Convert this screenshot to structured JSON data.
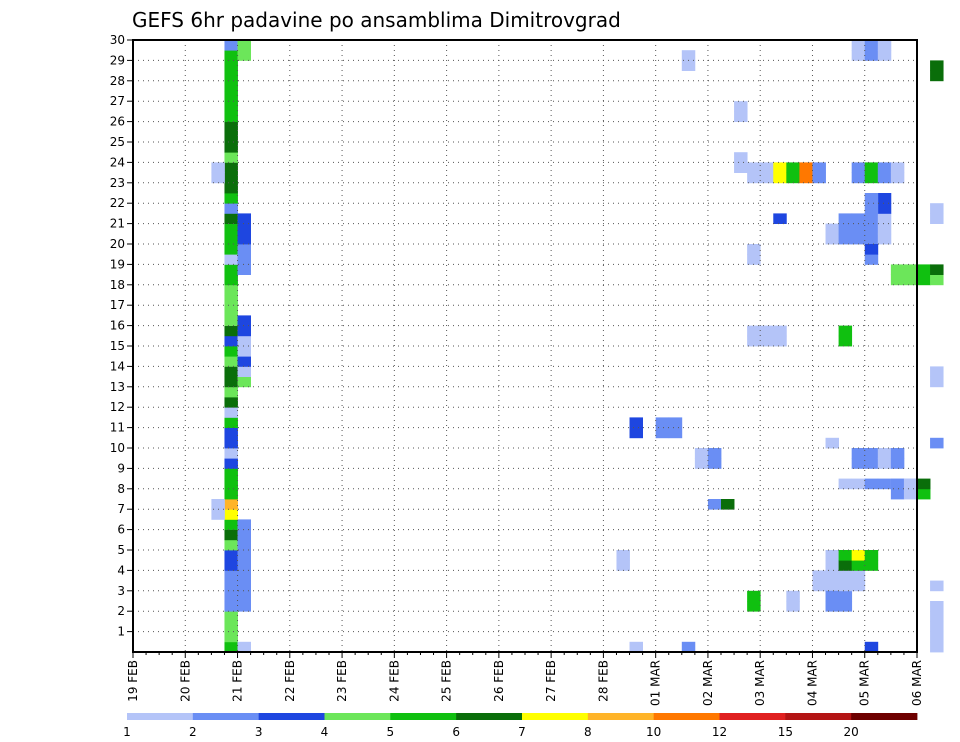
{
  "chart_data": {
    "type": "heatmap",
    "title": "GEFS 6hr padavine po ansamblima Dimitrovgrad",
    "xlabel": "",
    "ylabel": "",
    "x_ticks": [
      "19 FEB",
      "20 FEB",
      "21 FEB",
      "22 FEB",
      "23 FEB",
      "24 FEB",
      "25 FEB",
      "26 FEB",
      "27 FEB",
      "28 FEB",
      "01 MAR",
      "02 MAR",
      "03 MAR",
      "04 MAR",
      "05 MAR",
      "06 MAR"
    ],
    "y_ticks": [
      "1",
      "2",
      "3",
      "4",
      "5",
      "6",
      "7",
      "8",
      "9",
      "10",
      "11",
      "12",
      "13",
      "14",
      "15",
      "16",
      "17",
      "18",
      "19",
      "20",
      "21",
      "22",
      "23",
      "24",
      "25",
      "26",
      "27",
      "28",
      "29",
      "30"
    ],
    "x_unit": "6-hour steps since 19 FEB 00Z",
    "ylim": [
      0,
      30
    ],
    "grid": true,
    "legend": {
      "placement": "bottom",
      "colors": [
        "#b4c4f8",
        "#6a8ef4",
        "#1e46e0",
        "#6ce65a",
        "#10c010",
        "#0a6e0a",
        "#ffff00",
        "#ffb428",
        "#ff7800",
        "#e02020",
        "#b41414",
        "#6e0000"
      ],
      "labels": [
        "1",
        "2",
        "3",
        "4",
        "5",
        "6",
        "7",
        "8",
        "10",
        "12",
        "15",
        "20"
      ]
    },
    "cells": [
      [
        7,
        0,
        5
      ],
      [
        7,
        1,
        4
      ],
      [
        7,
        2,
        4
      ],
      [
        7,
        3,
        4
      ],
      [
        7,
        4,
        2
      ],
      [
        7,
        5,
        2
      ],
      [
        7,
        6,
        2
      ],
      [
        7,
        7,
        2
      ],
      [
        7,
        8,
        3
      ],
      [
        7,
        9,
        3
      ],
      [
        7,
        10,
        4
      ],
      [
        7,
        11,
        6
      ],
      [
        7,
        12,
        5
      ],
      [
        7,
        13,
        7
      ],
      [
        7,
        14,
        8
      ],
      [
        7,
        15,
        5
      ],
      [
        7,
        16,
        5
      ],
      [
        7,
        17,
        5
      ],
      [
        7,
        18,
        3
      ],
      [
        7,
        19,
        1
      ],
      [
        7,
        20,
        3
      ],
      [
        7,
        21,
        3
      ],
      [
        7,
        22,
        5
      ],
      [
        7,
        23,
        1
      ],
      [
        7,
        24,
        6
      ],
      [
        7,
        25,
        4
      ],
      [
        7,
        26,
        6
      ],
      [
        7,
        27,
        6
      ],
      [
        7,
        28,
        4
      ],
      [
        7,
        29,
        5
      ],
      [
        7,
        30,
        3
      ],
      [
        7,
        31,
        6
      ],
      [
        7,
        32,
        4
      ],
      [
        7,
        33,
        4
      ],
      [
        7,
        34,
        4
      ],
      [
        7,
        35,
        4
      ],
      [
        7,
        36,
        5
      ],
      [
        7,
        37,
        5
      ],
      [
        7,
        38,
        1
      ],
      [
        7,
        39,
        5
      ],
      [
        7,
        40,
        5
      ],
      [
        7,
        41,
        5
      ],
      [
        7,
        42,
        6
      ],
      [
        7,
        43,
        2
      ],
      [
        7,
        44,
        5
      ],
      [
        7,
        45,
        6
      ],
      [
        7,
        46,
        6
      ],
      [
        7,
        47,
        6
      ],
      [
        7,
        48,
        4
      ],
      [
        7,
        49,
        6
      ],
      [
        7,
        50,
        6
      ],
      [
        7,
        51,
        6
      ],
      [
        7,
        52,
        5
      ],
      [
        7,
        53,
        5
      ],
      [
        7,
        54,
        5
      ],
      [
        7,
        55,
        5
      ],
      [
        7,
        56,
        5
      ],
      [
        7,
        57,
        5
      ],
      [
        7,
        58,
        5
      ],
      [
        7,
        59,
        2
      ],
      [
        8,
        0,
        1
      ],
      [
        8,
        4,
        2
      ],
      [
        8,
        5,
        2
      ],
      [
        8,
        6,
        2
      ],
      [
        8,
        7,
        2
      ],
      [
        8,
        8,
        2
      ],
      [
        8,
        9,
        2
      ],
      [
        8,
        10,
        2
      ],
      [
        8,
        11,
        2
      ],
      [
        8,
        12,
        2
      ],
      [
        8,
        26,
        4
      ],
      [
        8,
        27,
        1
      ],
      [
        8,
        28,
        3
      ],
      [
        8,
        29,
        1
      ],
      [
        8,
        30,
        1
      ],
      [
        8,
        31,
        3
      ],
      [
        8,
        32,
        3
      ],
      [
        8,
        37,
        2
      ],
      [
        8,
        38,
        2
      ],
      [
        8,
        39,
        2
      ],
      [
        8,
        40,
        3
      ],
      [
        8,
        41,
        3
      ],
      [
        8,
        42,
        3
      ],
      [
        8,
        58,
        4
      ],
      [
        8,
        59,
        4
      ],
      [
        6,
        13,
        1
      ],
      [
        6,
        14,
        1
      ],
      [
        6,
        46,
        1
      ],
      [
        6,
        47,
        1
      ],
      [
        37,
        8,
        1
      ],
      [
        37,
        9,
        1
      ],
      [
        38,
        0,
        1
      ],
      [
        38,
        21,
        3
      ],
      [
        38,
        22,
        3
      ],
      [
        40,
        21,
        2
      ],
      [
        40,
        22,
        2
      ],
      [
        41,
        21,
        2
      ],
      [
        41,
        22,
        2
      ],
      [
        42,
        0,
        2
      ],
      [
        42,
        57,
        1
      ],
      [
        42,
        58,
        1
      ],
      [
        43,
        18,
        1
      ],
      [
        43,
        19,
        1
      ],
      [
        44,
        18,
        2
      ],
      [
        44,
        19,
        2
      ],
      [
        44,
        14,
        2
      ],
      [
        45,
        14,
        6
      ],
      [
        46,
        52,
        1
      ],
      [
        46,
        53,
        1
      ],
      [
        46,
        47,
        1
      ],
      [
        46,
        48,
        1
      ],
      [
        47,
        30,
        1
      ],
      [
        47,
        31,
        1
      ],
      [
        48,
        30,
        1
      ],
      [
        48,
        31,
        1
      ],
      [
        49,
        30,
        1
      ],
      [
        49,
        31,
        1
      ],
      [
        47,
        38,
        1
      ],
      [
        47,
        39,
        1
      ],
      [
        47,
        4,
        5
      ],
      [
        47,
        5,
        5
      ],
      [
        47,
        46,
        1
      ],
      [
        47,
        47,
        1
      ],
      [
        48,
        46,
        1
      ],
      [
        48,
        47,
        1
      ],
      [
        49,
        46,
        7
      ],
      [
        49,
        47,
        7
      ],
      [
        50,
        46,
        5
      ],
      [
        50,
        47,
        5
      ],
      [
        51,
        46,
        9
      ],
      [
        51,
        47,
        9
      ],
      [
        52,
        46,
        2
      ],
      [
        52,
        47,
        2
      ],
      [
        49,
        42,
        3
      ],
      [
        50,
        4,
        1
      ],
      [
        50,
        5,
        1
      ],
      [
        52,
        6,
        1
      ],
      [
        52,
        7,
        1
      ],
      [
        53,
        6,
        1
      ],
      [
        53,
        7,
        1
      ],
      [
        53,
        4,
        2
      ],
      [
        53,
        5,
        2
      ],
      [
        54,
        4,
        2
      ],
      [
        54,
        5,
        2
      ],
      [
        54,
        6,
        1
      ],
      [
        54,
        7,
        1
      ],
      [
        55,
        6,
        1
      ],
      [
        55,
        7,
        1
      ],
      [
        53,
        8,
        1
      ],
      [
        53,
        9,
        1
      ],
      [
        54,
        8,
        6
      ],
      [
        54,
        9,
        5
      ],
      [
        55,
        8,
        5
      ],
      [
        55,
        9,
        7
      ],
      [
        56,
        8,
        5
      ],
      [
        56,
        9,
        5
      ],
      [
        53,
        40,
        1
      ],
      [
        53,
        41,
        1
      ],
      [
        54,
        40,
        2
      ],
      [
        54,
        41,
        2
      ],
      [
        54,
        42,
        2
      ],
      [
        55,
        40,
        2
      ],
      [
        55,
        41,
        2
      ],
      [
        55,
        42,
        2
      ],
      [
        56,
        40,
        2
      ],
      [
        56,
        41,
        2
      ],
      [
        56,
        42,
        2
      ],
      [
        57,
        40,
        1
      ],
      [
        57,
        41,
        1
      ],
      [
        57,
        42,
        1
      ],
      [
        56,
        38,
        2
      ],
      [
        56,
        39,
        3
      ],
      [
        57,
        43,
        3
      ],
      [
        57,
        44,
        3
      ],
      [
        56,
        43,
        2
      ],
      [
        56,
        44,
        2
      ],
      [
        53,
        20,
        1
      ],
      [
        54,
        16,
        1
      ],
      [
        55,
        16,
        1
      ],
      [
        56,
        16,
        2
      ],
      [
        57,
        16,
        2
      ],
      [
        58,
        16,
        1
      ],
      [
        59,
        16,
        1
      ],
      [
        55,
        18,
        2
      ],
      [
        55,
        19,
        2
      ],
      [
        56,
        18,
        2
      ],
      [
        56,
        19,
        2
      ],
      [
        57,
        18,
        1
      ],
      [
        57,
        19,
        1
      ],
      [
        58,
        18,
        2
      ],
      [
        58,
        19,
        2
      ],
      [
        54,
        30,
        5
      ],
      [
        54,
        31,
        5
      ],
      [
        55,
        46,
        2
      ],
      [
        55,
        47,
        2
      ],
      [
        56,
        46,
        5
      ],
      [
        56,
        47,
        5
      ],
      [
        57,
        46,
        2
      ],
      [
        57,
        47,
        2
      ],
      [
        58,
        46,
        1
      ],
      [
        58,
        47,
        1
      ],
      [
        56,
        0,
        3
      ],
      [
        58,
        36,
        4
      ],
      [
        58,
        37,
        4
      ],
      [
        59,
        36,
        4
      ],
      [
        59,
        37,
        4
      ],
      [
        60,
        36,
        5
      ],
      [
        60,
        37,
        5
      ],
      [
        61,
        36,
        4
      ],
      [
        61,
        37,
        6
      ],
      [
        55,
        58,
        1
      ],
      [
        55,
        59,
        1
      ],
      [
        56,
        58,
        2
      ],
      [
        56,
        59,
        2
      ],
      [
        57,
        58,
        1
      ],
      [
        57,
        59,
        1
      ],
      [
        58,
        15,
        2
      ],
      [
        58,
        16,
        2
      ],
      [
        59,
        15,
        1
      ],
      [
        59,
        16,
        1
      ],
      [
        60,
        15,
        5
      ],
      [
        60,
        16,
        6
      ],
      [
        61,
        6,
        1
      ],
      [
        61,
        20,
        2
      ],
      [
        61,
        42,
        1
      ],
      [
        61,
        43,
        1
      ],
      [
        61,
        2,
        1
      ],
      [
        61,
        3,
        1
      ],
      [
        61,
        4,
        1
      ],
      [
        61,
        26,
        1
      ],
      [
        61,
        27,
        1
      ],
      [
        61,
        0,
        1
      ],
      [
        61,
        1,
        1
      ],
      [
        61,
        56,
        6
      ],
      [
        61,
        57,
        6
      ]
    ]
  }
}
